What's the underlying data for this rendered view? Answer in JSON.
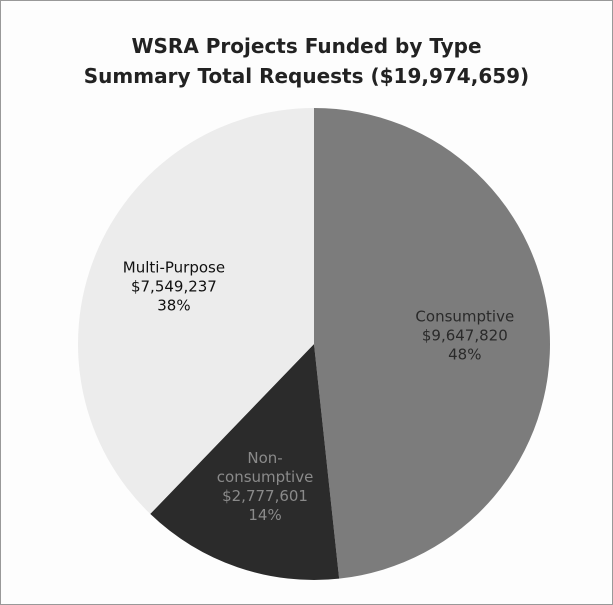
{
  "chart_data": {
    "type": "pie",
    "title": "WSRA Projects Funded by Type",
    "subtitle": "Summary Total Requests ($19,974,659)",
    "categories": [
      "Consumptive",
      "Non-consumptive",
      "Multi-Purpose"
    ],
    "values": [
      9647820,
      2777601,
      7549237
    ],
    "value_labels": [
      "$9,647,820",
      "$2,777,601",
      "$7,549,237"
    ],
    "percent_labels": [
      "48%",
      "14%",
      "38%"
    ],
    "colors": [
      "#7c7c7c",
      "#2b2b2b",
      "#ececec"
    ],
    "label_colors": [
      "#2a2a2a",
      "#8a8a8a",
      "#111111"
    ]
  }
}
